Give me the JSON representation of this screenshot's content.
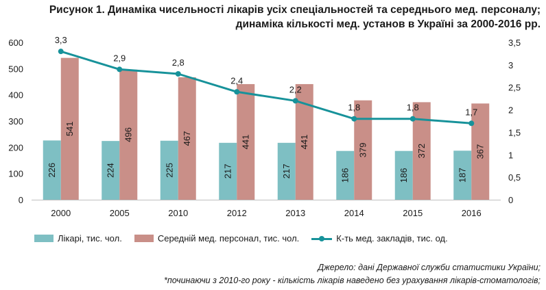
{
  "title": {
    "line1": "Рисунок 1. Динаміка чисельності лікарів усіх спеціальностей та середнього мед. персоналу;",
    "line2": "динаміка кількості мед. установ в Україні за 2000-2016 рр."
  },
  "colors": {
    "doctors": "#7ebfc3",
    "nurses": "#c98f88",
    "facilities": "#17929a",
    "axis": "#bfbfbf"
  },
  "chart_data": {
    "type": "bar",
    "categories": [
      "2000",
      "2005",
      "2010",
      "2012",
      "2013",
      "2014",
      "2015",
      "2016"
    ],
    "series": [
      {
        "name": "Лікарі, тис. чол.",
        "type": "bar",
        "axis": "left",
        "values": [
          226,
          224,
          225,
          217,
          217,
          186,
          186,
          187
        ],
        "labels": [
          "226",
          "224",
          "225",
          "217",
          "217",
          "186",
          "186",
          "187"
        ]
      },
      {
        "name": "Середній мед. персонал, тис. чол.",
        "type": "bar",
        "axis": "left",
        "values": [
          541,
          496,
          467,
          441,
          441,
          379,
          372,
          367
        ],
        "labels": [
          "541",
          "496",
          "467",
          "441",
          "441",
          "379",
          "372",
          "367"
        ]
      },
      {
        "name": "К-ть мед. закладів, тис. од.",
        "type": "line",
        "axis": "right",
        "values": [
          3.3,
          2.9,
          2.8,
          2.4,
          2.2,
          1.8,
          1.8,
          1.7
        ],
        "labels": [
          "3,3",
          "2,9",
          "2,8",
          "2,4",
          "2,2",
          "1,8",
          "1,8",
          "1,7"
        ]
      }
    ],
    "ylim_left": [
      0,
      600
    ],
    "ylim_right": [
      0,
      3.5
    ],
    "yticks_left": [
      "0",
      "100",
      "200",
      "300",
      "400",
      "500",
      "600"
    ],
    "yticks_right": [
      "0",
      "0,5",
      "1",
      "1,5",
      "2",
      "2,5",
      "3",
      "3,5"
    ],
    "grid": false,
    "legend_position": "bottom"
  },
  "source": {
    "line1": "Джерело: дані Державної служби статистики України;",
    "line2": "*починаючи з 2010-го року - кількість лікарів наведено без урахування лікарів-стоматологів;"
  }
}
